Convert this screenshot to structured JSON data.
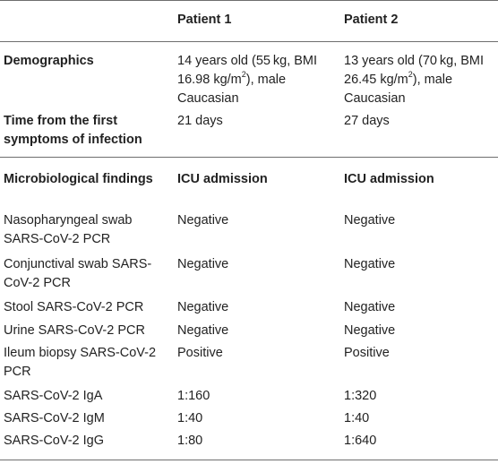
{
  "header": {
    "col1": "",
    "col2": "Patient 1",
    "col3": "Patient 2"
  },
  "demographics": {
    "label": "Demographics",
    "p1_pre": "14 years old (55 kg, BMI 16.98 kg/m",
    "p1_sup": "2",
    "p1_post": "), male Caucasian",
    "p2_pre": "13 years old (70 kg, BMI 26.45 kg/m",
    "p2_sup": "2",
    "p2_post": "), male Caucasian"
  },
  "time": {
    "label": "Time from the first symptoms of infection",
    "p1": "21 days",
    "p2": "27 days"
  },
  "micro_header": {
    "label": "Microbiological findings",
    "p1": "ICU admission",
    "p2": "ICU admission"
  },
  "rows": [
    {
      "label": "Nasopharyngeal swab SARS-CoV-2 PCR",
      "p1": "Negative",
      "p2": "Negative"
    },
    {
      "label": "Conjunctival swab SARS-CoV-2 PCR",
      "p1": "Negative",
      "p2": "Negative"
    },
    {
      "label": "Stool SARS-CoV-2 PCR",
      "p1": "Negative",
      "p2": "Negative"
    },
    {
      "label": "Urine SARS-CoV-2 PCR",
      "p1": "Negative",
      "p2": "Negative"
    },
    {
      "label": "Ileum biopsy SARS-CoV-2 PCR",
      "p1": "Positive",
      "p2": "Positive"
    },
    {
      "label": "SARS-CoV-2 IgA",
      "p1": "1:160",
      "p2": "1:320"
    },
    {
      "label": "SARS-CoV-2 IgM",
      "p1": "1:40",
      "p2": "1:40"
    },
    {
      "label": "SARS-CoV-2 IgG",
      "p1": "1:80",
      "p2": "1:640"
    }
  ]
}
